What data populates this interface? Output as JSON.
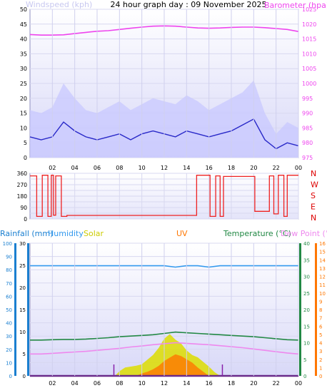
{
  "title": "24 hour graph day : 09 November 2025",
  "x_ticks": [
    "02",
    "04",
    "06",
    "08",
    "10",
    "12",
    "14",
    "16",
    "18",
    "20",
    "22",
    "00"
  ],
  "colors": {
    "windspeed_label": "#c8c8f0",
    "barometer": "#ee44ee",
    "wind_avg": "#2828c8",
    "gust_fill": "#c8c8ff",
    "wind_dir": "#ee2222",
    "rain": "#1a7fd0",
    "humidity": "#3399ee",
    "solar": "#dddd00",
    "uv": "#ff7700",
    "temperature": "#228844",
    "dewpoint": "#ee88ee",
    "direction_text": "#dd0000"
  },
  "chart_data": [
    {
      "type": "line",
      "axis_left_label": "Windspeed (kph)",
      "axis_right_label": "Barometer (hpa)",
      "left_ticks": [
        0,
        5,
        10,
        15,
        20,
        25,
        30,
        35,
        40,
        45,
        50
      ],
      "right_ticks": [
        975,
        980,
        985,
        990,
        995,
        1000,
        1005,
        1010,
        1015,
        1020,
        1025
      ],
      "ylim_left": [
        0,
        50
      ],
      "ylim_right": [
        975,
        1025
      ],
      "hours": [
        0,
        1,
        2,
        3,
        4,
        5,
        6,
        7,
        8,
        9,
        10,
        11,
        12,
        13,
        14,
        15,
        16,
        17,
        18,
        19,
        20,
        21,
        22,
        23,
        24
      ],
      "series": [
        {
          "key": "barometer",
          "values": [
            1016.5,
            1016.3,
            1016.3,
            1016.4,
            1016.8,
            1017.2,
            1017.6,
            1017.8,
            1018.2,
            1018.6,
            1019.0,
            1019.3,
            1019.4,
            1019.3,
            1019.0,
            1018.7,
            1018.6,
            1018.7,
            1018.9,
            1019.0,
            1019.0,
            1018.8,
            1018.5,
            1018.2,
            1017.5
          ]
        },
        {
          "key": "wind_avg",
          "values": [
            7,
            6,
            7,
            12,
            9,
            7,
            6,
            7,
            8,
            6,
            8,
            9,
            8,
            7,
            9,
            8,
            7,
            8,
            9,
            11,
            13,
            6,
            3,
            5,
            4
          ]
        },
        {
          "key": "gust",
          "values": [
            16,
            15,
            17,
            25,
            20,
            16,
            15,
            17,
            19,
            16,
            18,
            20,
            19,
            18,
            21,
            19,
            16,
            18,
            20,
            22,
            26,
            15,
            8,
            12,
            10
          ]
        }
      ]
    },
    {
      "type": "line",
      "axis_left_ticks": [
        0,
        45,
        90,
        135,
        180,
        225,
        270,
        315,
        360
      ],
      "axis_right_labels": [
        "N",
        "W",
        "S",
        "E",
        "N"
      ],
      "ylim": [
        0,
        360
      ],
      "segments": [
        {
          "hours": [
            0.0,
            0.6
          ],
          "value": 340
        },
        {
          "hours": [
            0.6,
            1.1
          ],
          "value": 20
        },
        {
          "hours": [
            1.1,
            1.6
          ],
          "value": 345
        },
        {
          "hours": [
            1.6,
            1.9
          ],
          "value": 20
        },
        {
          "hours": [
            1.9,
            2.1
          ],
          "value": 345
        },
        {
          "hours": [
            2.1,
            2.3
          ],
          "value": 30
        },
        {
          "hours": [
            2.3,
            2.8
          ],
          "value": 340
        },
        {
          "hours": [
            2.8,
            3.3
          ],
          "value": 20
        },
        {
          "hours": [
            3.3,
            14.9
          ],
          "value": 28
        },
        {
          "hours": [
            14.9,
            16.1
          ],
          "value": 345
        },
        {
          "hours": [
            16.1,
            16.6
          ],
          "value": 20
        },
        {
          "hours": [
            16.6,
            17.0
          ],
          "value": 340
        },
        {
          "hours": [
            17.0,
            17.3
          ],
          "value": 20
        },
        {
          "hours": [
            17.3,
            20.1
          ],
          "value": 335
        },
        {
          "hours": [
            20.1,
            21.4
          ],
          "value": 60
        },
        {
          "hours": [
            21.4,
            21.8
          ],
          "value": 340
        },
        {
          "hours": [
            21.8,
            22.2
          ],
          "value": 40
        },
        {
          "hours": [
            22.2,
            22.7
          ],
          "value": 345
        },
        {
          "hours": [
            22.7,
            23.0
          ],
          "value": 20
        },
        {
          "hours": [
            23.0,
            24.0
          ],
          "value": 345
        }
      ]
    },
    {
      "type": "line",
      "labels": {
        "rain": "Rainfall (mm)",
        "humidity": "Humidity",
        "solar": "Solar",
        "uv": "UV",
        "temperature": "Temperature (°C)",
        "dewpoint": "Dew Point (°C)"
      },
      "humidity_ticks": [
        0,
        10,
        20,
        30,
        40,
        50,
        60,
        70,
        80,
        90,
        100
      ],
      "rain_ticks": [
        0,
        5,
        10,
        15,
        20,
        25,
        30
      ],
      "temp_ticks": [
        0,
        5,
        10,
        15,
        20,
        25,
        30,
        35,
        40
      ],
      "uv_ticks": [
        0,
        1,
        2,
        3,
        4,
        5,
        6,
        7,
        8,
        9,
        10,
        11,
        12,
        13,
        14,
        15,
        16
      ],
      "ylim_humidity": [
        0,
        100
      ],
      "ylim_rain": [
        0,
        30
      ],
      "ylim_temp": [
        0,
        40
      ],
      "ylim_uv": [
        0,
        16
      ],
      "hours": [
        0,
        1,
        2,
        3,
        4,
        5,
        6,
        7,
        8,
        9,
        10,
        11,
        12,
        13,
        14,
        15,
        16,
        17,
        18,
        19,
        20,
        21,
        22,
        23,
        24
      ],
      "series": [
        {
          "key": "humidity",
          "values": [
            83,
            83,
            83,
            83,
            83,
            83,
            83,
            83,
            83,
            83,
            83,
            83,
            83,
            82,
            83,
            83,
            82,
            83,
            83,
            83,
            83,
            83,
            83,
            83,
            83
          ]
        },
        {
          "key": "temperature",
          "values": [
            10.8,
            10.8,
            10.9,
            11.0,
            11.0,
            11.1,
            11.3,
            11.5,
            11.8,
            12.0,
            12.2,
            12.4,
            12.8,
            13.2,
            13.0,
            12.8,
            12.6,
            12.4,
            12.2,
            12.0,
            11.8,
            11.5,
            11.2,
            10.9,
            10.8
          ]
        },
        {
          "key": "dewpoint",
          "values": [
            6.6,
            6.6,
            6.8,
            7.0,
            7.2,
            7.4,
            7.7,
            8.0,
            8.3,
            8.7,
            9.0,
            9.4,
            9.7,
            10.0,
            9.8,
            9.6,
            9.4,
            9.1,
            8.8,
            8.5,
            8.1,
            7.7,
            7.3,
            6.9,
            6.6
          ]
        },
        {
          "key": "rain",
          "values": [
            0,
            0,
            0,
            0,
            0,
            0,
            0,
            0,
            0,
            0,
            0,
            0,
            0,
            0,
            0,
            0,
            0,
            0,
            0,
            0,
            0,
            0,
            0,
            0,
            0
          ]
        }
      ],
      "solar_hours": [
        7.6,
        8.0,
        8.5,
        9.0,
        9.5,
        10.0,
        10.5,
        11.0,
        11.5,
        12.0,
        12.5,
        13.0,
        13.5,
        14.0,
        14.5,
        15.0,
        15.5,
        16.0,
        16.5,
        17.0
      ],
      "solar_values": [
        0,
        10,
        18,
        20,
        22,
        25,
        35,
        45,
        60,
        80,
        90,
        78,
        70,
        55,
        45,
        40,
        30,
        20,
        8,
        0
      ],
      "uv_hours": [
        9.5,
        10.0,
        10.5,
        11.0,
        11.5,
        12.0,
        12.5,
        13.0,
        13.5,
        14.0,
        14.5,
        15.0,
        15.5,
        16.0
      ],
      "uv_values": [
        0,
        0.3,
        0.5,
        0.8,
        1.2,
        1.8,
        2.2,
        2.6,
        2.4,
        2.0,
        1.6,
        1.0,
        0.5,
        0
      ],
      "markers": [
        7.5,
        17.2
      ]
    }
  ]
}
